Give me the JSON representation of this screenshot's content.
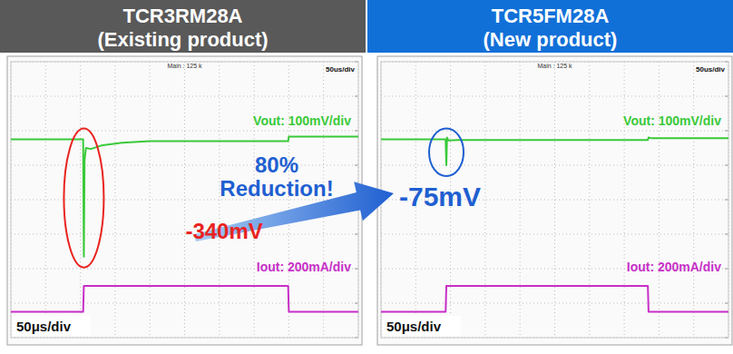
{
  "chart_data": [
    {
      "type": "line",
      "title": "TCR3RM28A",
      "subtitle": "(Existing product)",
      "color": "#595959",
      "scope_info": "Main : 125 k",
      "scope_timebase": "50us/div",
      "xlabel": "50μs/div",
      "x": [
        0,
        104,
        105,
        106,
        108,
        115,
        130,
        160,
        200,
        399,
        400,
        405,
        500
      ],
      "series": [
        {
          "name": "Vout: 100mV/div",
          "color": "#39c939",
          "values": [
            0,
            0,
            -340,
            -60,
            -25,
            -28,
            -18,
            -10,
            -5,
            -5,
            8,
            8,
            8
          ]
        },
        {
          "name": "Iout: 200mA/div",
          "color": "#c72fc7",
          "axis": "y2",
          "values": [
            0,
            0,
            150,
            150,
            150,
            150,
            150,
            150,
            150,
            150,
            0,
            0,
            0
          ]
        }
      ],
      "xlim": [
        0,
        500
      ],
      "xticks": [
        0,
        50,
        100,
        150,
        200,
        250,
        300,
        350,
        400,
        450,
        500
      ],
      "ylim": [
        -575,
        225
      ],
      "yticks": [
        -575,
        -475,
        -375,
        -275,
        -175,
        -75,
        25,
        125,
        225
      ],
      "y2lim": [
        -150,
        1450
      ],
      "y2ticks": [
        -150,
        50,
        250,
        450,
        650,
        850,
        1050,
        1250,
        1450
      ],
      "grid": true,
      "tick_labels": false,
      "annotations": [
        {
          "text": "-340mV",
          "x": 105,
          "y": -340,
          "color": "#e8231f"
        }
      ]
    },
    {
      "type": "line",
      "title": "TCR5FM28A",
      "subtitle": "(New product)",
      "color": "#1170d8",
      "scope_info": "Main : 125 k",
      "scope_timebase": "50us/div",
      "xlabel": "50μs/div",
      "x": [
        0,
        93,
        94,
        95,
        97,
        110,
        150,
        384,
        385,
        390,
        500
      ],
      "series": [
        {
          "name": "Vout: 100mV/div",
          "color": "#39c939",
          "values": [
            0,
            0,
            -75,
            5,
            -3,
            -2,
            -2,
            -2,
            5,
            3,
            3
          ]
        },
        {
          "name": "Iout: 200mA/div",
          "color": "#c72fc7",
          "axis": "y2",
          "values": [
            0,
            0,
            150,
            150,
            150,
            150,
            150,
            150,
            0,
            0,
            0
          ]
        }
      ],
      "xlim": [
        0,
        500
      ],
      "xticks": [
        0,
        50,
        100,
        150,
        200,
        250,
        300,
        350,
        400,
        450,
        500
      ],
      "ylim": [
        -575,
        225
      ],
      "yticks": [
        -575,
        -475,
        -375,
        -275,
        -175,
        -75,
        25,
        125,
        225
      ],
      "y2lim": [
        -150,
        1450
      ],
      "y2ticks": [
        -150,
        50,
        250,
        450,
        650,
        850,
        1050,
        1250,
        1450
      ],
      "grid": true,
      "tick_labels": false,
      "annotations": [
        {
          "text": "-75mV",
          "x": 94,
          "y": -75,
          "color": "#1f5fd1"
        }
      ]
    }
  ],
  "comparison": {
    "lines": [
      "80%",
      "Reduction!"
    ],
    "color": "#1f5fd1"
  }
}
